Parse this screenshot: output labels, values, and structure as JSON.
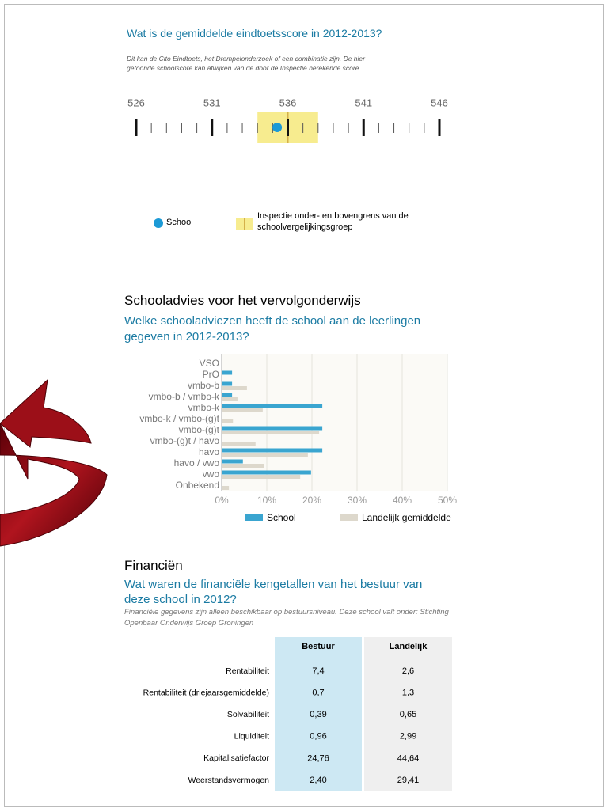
{
  "score": {
    "title": "Wat is de gemiddelde eindtoetsscore in 2012-2013?",
    "note": "Dit kan de Cito Eindtoets, het Drempelonderzoek of een combinatie zijn. De hier getoonde schoolscore kan afwijken van de door de Inspectie berekende score.",
    "xlim": [
      526,
      546
    ],
    "xticks": [
      526,
      531,
      536,
      541,
      546
    ],
    "school": 535.3,
    "lower": 534,
    "upper": 538,
    "mid": 536,
    "school_color": "#1c9ad6",
    "band_color": "#f7ec8f",
    "legend": {
      "school": "School",
      "band": "Inspectie onder- en bovengrens van de schoolvergelijkingsgroep"
    }
  },
  "advice": {
    "heading": "Schooladvies voor het vervolgonderwijs",
    "subtitle": "Welke schooladviezen heeft de school aan de leerlingen gegeven in 2012-2013?",
    "chart_data": {
      "type": "hbar",
      "categories": [
        "VSO",
        "PrO",
        "vmbo-b",
        "vmbo-b / vmbo-k",
        "vmbo-k",
        "vmbo-k / vmbo-(g)t",
        "vmbo-(g)t",
        "vmbo-(g)t / havo",
        "havo",
        "havo / vwo",
        "vwo",
        "Onbekend"
      ],
      "series": [
        {
          "name": "School",
          "color": "#3aa5d0",
          "values": [
            0,
            2.3,
            2.3,
            2.3,
            22.3,
            0,
            22.3,
            0,
            22.3,
            4.7,
            19.8,
            0
          ]
        },
        {
          "name": "Landelijk gemiddelde",
          "color": "#ddd8cc",
          "values": [
            0,
            0,
            5.6,
            3.5,
            9.1,
            2.5,
            21.6,
            7.5,
            19.1,
            9.3,
            17.4,
            1.6
          ]
        }
      ],
      "xlim": [
        0,
        50
      ],
      "xticks": [
        {
          "value": 0,
          "label": "0%"
        },
        {
          "value": 10,
          "label": "10%"
        },
        {
          "value": 20,
          "label": "20%"
        },
        {
          "value": 30,
          "label": "30%"
        },
        {
          "value": 40,
          "label": "40%"
        },
        {
          "value": 50,
          "label": "50%"
        }
      ],
      "grid": true
    }
  },
  "finance": {
    "heading": "Financiën",
    "subtitle": "Wat waren de financiële kengetallen van het bestuur van deze school in 2012?",
    "note": "Financiële gegevens zijn alleen beschikbaar op bestuursniveau. Deze school valt onder: Stichting Openbaar Onderwijs Groep Groningen",
    "table": {
      "columns": [
        "Bestuur",
        "Landelijk"
      ],
      "rows": [
        [
          "Rentabiliteit",
          "7,4",
          "2,6"
        ],
        [
          "Rentabiliteit (driejaarsgemiddelde)",
          "0,7",
          "1,3"
        ],
        [
          "Solvabiliteit",
          "0,39",
          "0,65"
        ],
        [
          "Liquiditeit",
          "0,96",
          "2,99"
        ],
        [
          "Kapitalisatiefactor",
          "24,76",
          "44,64"
        ],
        [
          "Weerstandsvermogen",
          "2,40",
          "29,41"
        ]
      ]
    }
  }
}
